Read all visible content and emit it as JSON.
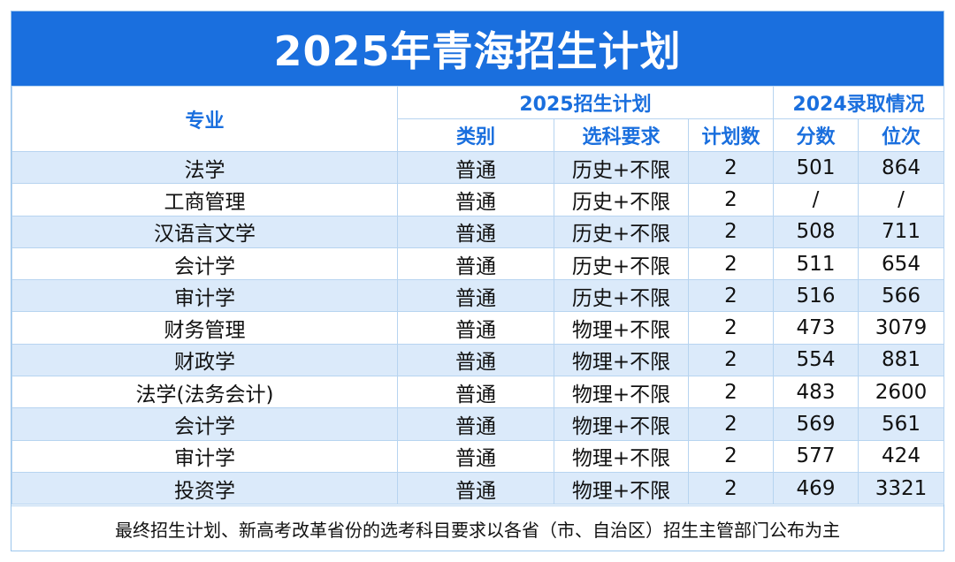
{
  "title": "2025年青海招生计划",
  "header": {
    "major": "专业",
    "plan_group": "2025招生计划",
    "admit_group": "2024录取情况",
    "category": "类别",
    "subject_req": "选科要求",
    "plan_count": "计划数",
    "score": "分数",
    "rank": "位次"
  },
  "rows": [
    {
      "major": "法学",
      "category": "普通",
      "subject_req": "历史+不限",
      "plan_count": "2",
      "score": "501",
      "rank": "864"
    },
    {
      "major": "工商管理",
      "category": "普通",
      "subject_req": "历史+不限",
      "plan_count": "2",
      "score": "/",
      "rank": "/"
    },
    {
      "major": "汉语言文学",
      "category": "普通",
      "subject_req": "历史+不限",
      "plan_count": "2",
      "score": "508",
      "rank": "711"
    },
    {
      "major": "会计学",
      "category": "普通",
      "subject_req": "历史+不限",
      "plan_count": "2",
      "score": "511",
      "rank": "654"
    },
    {
      "major": "审计学",
      "category": "普通",
      "subject_req": "历史+不限",
      "plan_count": "2",
      "score": "516",
      "rank": "566"
    },
    {
      "major": "财务管理",
      "category": "普通",
      "subject_req": "物理+不限",
      "plan_count": "2",
      "score": "473",
      "rank": "3079"
    },
    {
      "major": "财政学",
      "category": "普通",
      "subject_req": "物理+不限",
      "plan_count": "2",
      "score": "554",
      "rank": "881"
    },
    {
      "major": "法学(法务会计)",
      "category": "普通",
      "subject_req": "物理+不限",
      "plan_count": "2",
      "score": "483",
      "rank": "2600"
    },
    {
      "major": "会计学",
      "category": "普通",
      "subject_req": "物理+不限",
      "plan_count": "2",
      "score": "569",
      "rank": "561"
    },
    {
      "major": "审计学",
      "category": "普通",
      "subject_req": "物理+不限",
      "plan_count": "2",
      "score": "577",
      "rank": "424"
    },
    {
      "major": "投资学",
      "category": "普通",
      "subject_req": "物理+不限",
      "plan_count": "2",
      "score": "469",
      "rank": "3321"
    }
  ],
  "footer": "最终招生计划、新高考改革省份的选考科目要求以各省（市、自治区）招生主管部门公布为主"
}
